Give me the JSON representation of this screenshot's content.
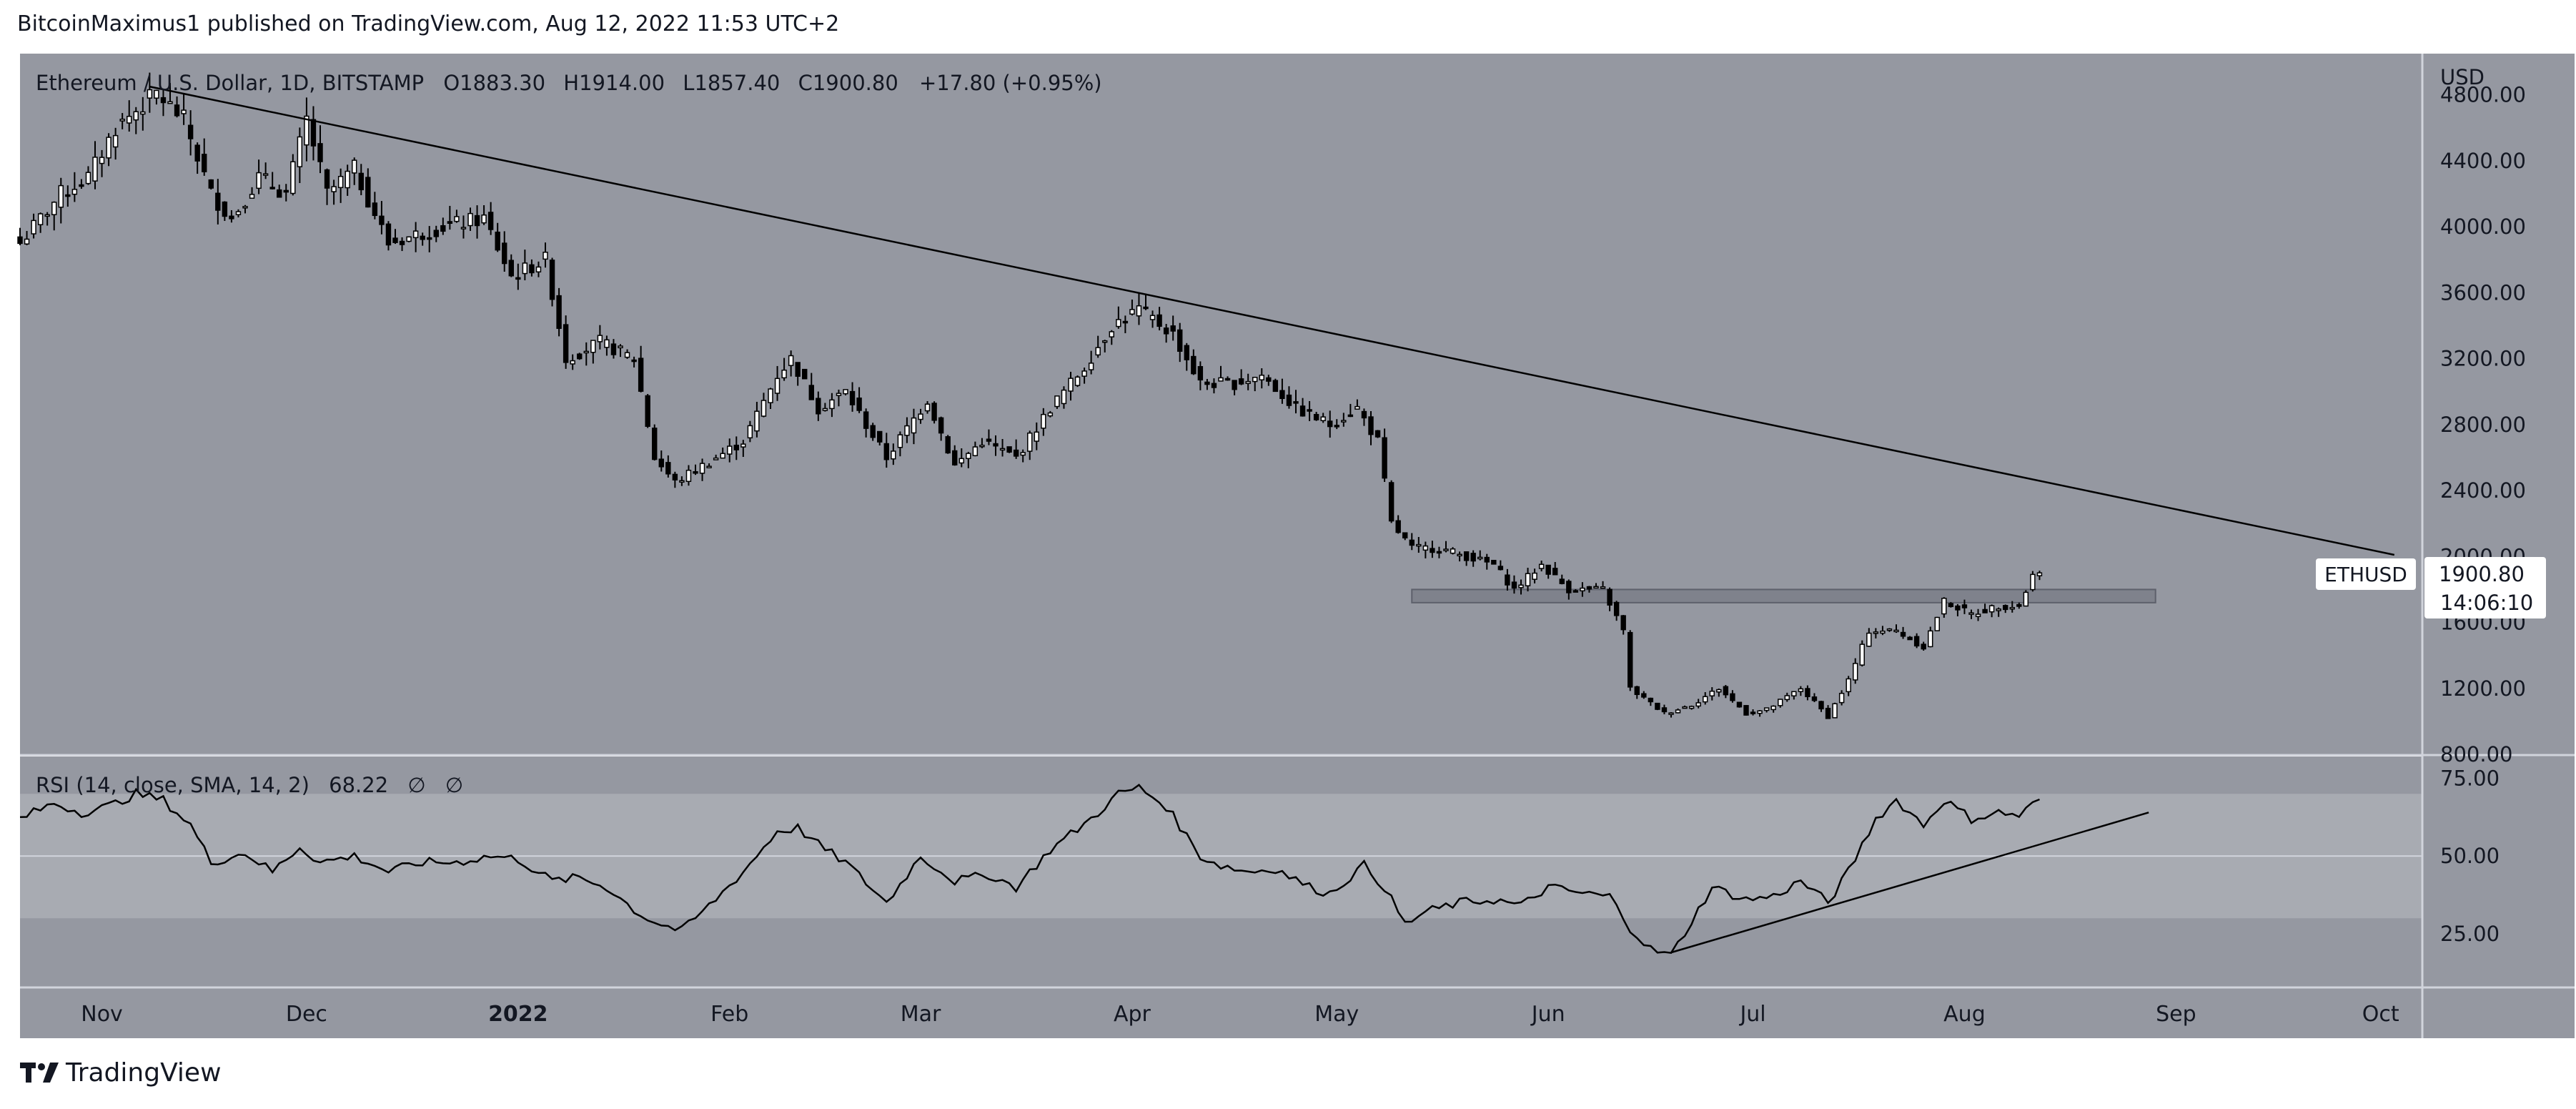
{
  "header": {
    "published_line": "BitcoinMaximus1 published on TradingView.com, Aug 12, 2022 11:53 UTC+2"
  },
  "legend": {
    "symbol": "Ethereum / U.S. Dollar, 1D, BITSTAMP",
    "o_label": "O",
    "o_value": "1883.30",
    "h_label": "H",
    "h_value": "1914.00",
    "l_label": "L",
    "l_value": "1857.40",
    "c_label": "C",
    "c_value": "1900.80",
    "change": "+17.80 (+0.95%)"
  },
  "rsi_legend": {
    "label": "RSI (14, close, SMA, 14, 2)",
    "value": "68.22",
    "extra1": "∅",
    "extra2": "∅"
  },
  "price_tag": {
    "symbol": "ETHUSD",
    "price": "1900.80",
    "countdown": "14:06:10"
  },
  "footer": {
    "brand": "TradingView"
  },
  "colors": {
    "pane_bg": "#9598a1",
    "band": "#a8abb2",
    "text": "#131722",
    "line": "#000000",
    "zone": "#787b86"
  },
  "chart_data": [
    {
      "type": "candlestick",
      "title": "Ethereum / U.S. Dollar, 1D, BITSTAMP",
      "y_unit": "USD",
      "yticks": [
        "4800.00",
        "4400.00",
        "4000.00",
        "3600.00",
        "3200.00",
        "2800.00",
        "2400.00",
        "2000.00",
        "1600.00",
        "1200.00",
        "800.00"
      ],
      "ylim": [
        800,
        5050
      ],
      "x_months": [
        "Nov",
        "Dec",
        "2022",
        "Feb",
        "Mar",
        "Apr",
        "May",
        "Jun",
        "Jul",
        "Aug",
        "Sep",
        "Oct"
      ],
      "xlim": [
        "2021-10-20",
        "2022-10-07"
      ],
      "close_anchors": [
        [
          "2021-10-20",
          3900
        ],
        [
          "2021-10-26",
          4200
        ],
        [
          "2021-10-30",
          4300
        ],
        [
          "2021-11-03",
          4600
        ],
        [
          "2021-11-09",
          4810
        ],
        [
          "2021-11-13",
          4650
        ],
        [
          "2021-11-17",
          4200
        ],
        [
          "2021-11-20",
          4050
        ],
        [
          "2021-11-24",
          4300
        ],
        [
          "2021-11-28",
          4200
        ],
        [
          "2021-12-01",
          4650
        ],
        [
          "2021-12-04",
          4200
        ],
        [
          "2021-12-08",
          4350
        ],
        [
          "2021-12-13",
          3900
        ],
        [
          "2021-12-17",
          3950
        ],
        [
          "2021-12-21",
          4000
        ],
        [
          "2021-12-27",
          4050
        ],
        [
          "2021-12-31",
          3700
        ],
        [
          "2022-01-05",
          3800
        ],
        [
          "2022-01-08",
          3200
        ],
        [
          "2022-01-13",
          3300
        ],
        [
          "2022-01-18",
          3200
        ],
        [
          "2022-01-21",
          2600
        ],
        [
          "2022-01-24",
          2450
        ],
        [
          "2022-01-28",
          2550
        ],
        [
          "2022-02-03",
          2700
        ],
        [
          "2022-02-08",
          3100
        ],
        [
          "2022-02-10",
          3200
        ],
        [
          "2022-02-14",
          2900
        ],
        [
          "2022-02-18",
          3000
        ],
        [
          "2022-02-24",
          2600
        ],
        [
          "2022-03-02",
          2950
        ],
        [
          "2022-03-06",
          2550
        ],
        [
          "2022-03-10",
          2700
        ],
        [
          "2022-03-15",
          2600
        ],
        [
          "2022-03-20",
          2900
        ],
        [
          "2022-03-25",
          3150
        ],
        [
          "2022-03-29",
          3400
        ],
        [
          "2022-04-02",
          3500
        ],
        [
          "2022-04-07",
          3350
        ],
        [
          "2022-04-11",
          3050
        ],
        [
          "2022-04-16",
          3050
        ],
        [
          "2022-04-20",
          3100
        ],
        [
          "2022-04-25",
          2900
        ],
        [
          "2022-04-30",
          2800
        ],
        [
          "2022-05-04",
          2900
        ],
        [
          "2022-05-07",
          2700
        ],
        [
          "2022-05-09",
          2200
        ],
        [
          "2022-05-12",
          2050
        ],
        [
          "2022-05-16",
          2050
        ],
        [
          "2022-05-20",
          2000
        ],
        [
          "2022-05-24",
          1950
        ],
        [
          "2022-05-27",
          1800
        ],
        [
          "2022-05-31",
          1950
        ],
        [
          "2022-06-04",
          1800
        ],
        [
          "2022-06-09",
          1800
        ],
        [
          "2022-06-12",
          1550
        ],
        [
          "2022-06-13",
          1200
        ],
        [
          "2022-06-18",
          1050
        ],
        [
          "2022-06-22",
          1100
        ],
        [
          "2022-06-26",
          1200
        ],
        [
          "2022-06-30",
          1050
        ],
        [
          "2022-07-03",
          1070
        ],
        [
          "2022-07-08",
          1200
        ],
        [
          "2022-07-12",
          1030
        ],
        [
          "2022-07-15",
          1250
        ],
        [
          "2022-07-18",
          1550
        ],
        [
          "2022-07-22",
          1550
        ],
        [
          "2022-07-26",
          1450
        ],
        [
          "2022-07-29",
          1730
        ],
        [
          "2022-08-02",
          1650
        ],
        [
          "2022-08-06",
          1700
        ],
        [
          "2022-08-09",
          1700
        ],
        [
          "2022-08-11",
          1883.3
        ],
        [
          "2022-08-12",
          1900.8
        ]
      ],
      "last_candle": {
        "date": "2022-08-12",
        "open": 1883.3,
        "high": 1914.0,
        "low": 1857.4,
        "close": 1900.8
      },
      "annotations": [
        {
          "type": "trendline",
          "from": [
            "2021-11-08",
            4850
          ],
          "to": [
            "2022-10-03",
            2010
          ]
        },
        {
          "type": "horizontal_zone",
          "from": "2022-05-12",
          "to": "2022-08-29",
          "price_low": 1720,
          "price_high": 1800
        }
      ]
    },
    {
      "type": "line",
      "title": "RSI (14, close, SMA, 14, 2)",
      "yticks": [
        "75.00",
        "50.00",
        "25.00"
      ],
      "ylim": [
        8,
        82
      ],
      "band": [
        30,
        70
      ],
      "midline": 50,
      "last_value": 68.22,
      "rsi_anchors": [
        [
          "2021-10-20",
          62
        ],
        [
          "2021-10-25",
          67
        ],
        [
          "2021-10-29",
          64
        ],
        [
          "2021-11-02",
          66
        ],
        [
          "2021-11-06",
          70
        ],
        [
          "2021-11-10",
          68
        ],
        [
          "2021-11-14",
          60
        ],
        [
          "2021-11-17",
          48
        ],
        [
          "2021-11-22",
          51
        ],
        [
          "2021-11-26",
          45
        ],
        [
          "2021-11-30",
          53
        ],
        [
          "2021-12-03",
          48
        ],
        [
          "2021-12-08",
          50
        ],
        [
          "2021-12-13",
          45
        ],
        [
          "2021-12-18",
          48
        ],
        [
          "2021-12-23",
          48
        ],
        [
          "2021-12-28",
          50
        ],
        [
          "2022-01-01",
          49
        ],
        [
          "2022-01-06",
          42
        ],
        [
          "2022-01-10",
          43
        ],
        [
          "2022-01-14",
          40
        ],
        [
          "2022-01-19",
          31
        ],
        [
          "2022-01-22",
          28
        ],
        [
          "2022-01-25",
          26
        ],
        [
          "2022-01-29",
          34
        ],
        [
          "2022-02-03",
          45
        ],
        [
          "2022-02-08",
          58
        ],
        [
          "2022-02-11",
          59
        ],
        [
          "2022-02-15",
          52
        ],
        [
          "2022-02-18",
          48
        ],
        [
          "2022-02-24",
          35
        ],
        [
          "2022-03-01",
          50
        ],
        [
          "2022-03-06",
          42
        ],
        [
          "2022-03-11",
          44
        ],
        [
          "2022-03-15",
          40
        ],
        [
          "2022-03-20",
          52
        ],
        [
          "2022-03-26",
          62
        ],
        [
          "2022-03-30",
          70
        ],
        [
          "2022-04-02",
          72
        ],
        [
          "2022-04-06",
          66
        ],
        [
          "2022-04-11",
          50
        ],
        [
          "2022-04-14",
          47
        ],
        [
          "2022-04-18",
          45
        ],
        [
          "2022-04-22",
          46
        ],
        [
          "2022-04-27",
          40
        ],
        [
          "2022-04-30",
          38
        ],
        [
          "2022-05-05",
          47
        ],
        [
          "2022-05-08",
          40
        ],
        [
          "2022-05-11",
          28
        ],
        [
          "2022-05-14",
          32
        ],
        [
          "2022-05-19",
          35
        ],
        [
          "2022-05-24",
          36
        ],
        [
          "2022-05-28",
          34
        ],
        [
          "2022-06-01",
          40
        ],
        [
          "2022-06-06",
          38
        ],
        [
          "2022-06-10",
          37
        ],
        [
          "2022-06-13",
          27
        ],
        [
          "2022-06-16",
          20
        ],
        [
          "2022-06-19",
          18
        ],
        [
          "2022-06-25",
          40
        ],
        [
          "2022-06-30",
          36
        ],
        [
          "2022-07-04",
          37
        ],
        [
          "2022-07-08",
          42
        ],
        [
          "2022-07-12",
          35
        ],
        [
          "2022-07-15",
          45
        ],
        [
          "2022-07-19",
          62
        ],
        [
          "2022-07-22",
          68
        ],
        [
          "2022-07-26",
          60
        ],
        [
          "2022-07-29",
          68
        ],
        [
          "2022-08-02",
          62
        ],
        [
          "2022-08-06",
          64
        ],
        [
          "2022-08-09",
          63
        ],
        [
          "2022-08-12",
          68.22
        ]
      ],
      "annotations": [
        {
          "type": "trendline",
          "from": [
            "2022-06-19",
            19
          ],
          "to": [
            "2022-08-28",
            64
          ]
        }
      ]
    }
  ]
}
